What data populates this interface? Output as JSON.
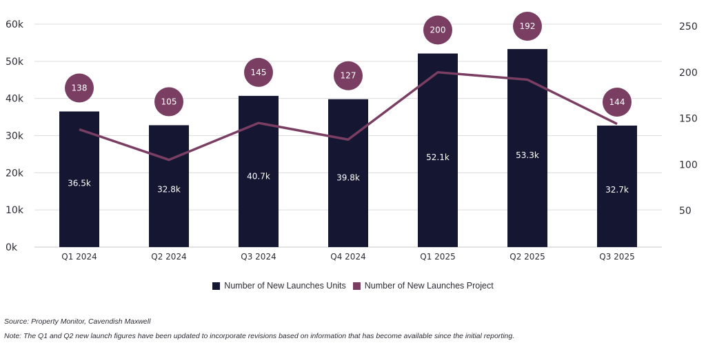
{
  "chart_data": {
    "type": "bar+line",
    "title": "",
    "categories": [
      "Q1 2024",
      "Q2 2024",
      "Q3 2024",
      "Q4 2024",
      "Q1 2025",
      "Q2 2025",
      "Q3 2025"
    ],
    "series": [
      {
        "name": "Number of New Launches Units",
        "type": "bar",
        "axis": "left",
        "color": "#151632",
        "values": [
          36500,
          32800,
          40700,
          39800,
          52100,
          53300,
          32700
        ],
        "labels": [
          "36.5k",
          "32.8k",
          "40.7k",
          "39.8k",
          "52.1k",
          "53.3k",
          "32.7k"
        ]
      },
      {
        "name": "Number of New Launches Project",
        "type": "line",
        "axis": "right",
        "color": "#7a3e63",
        "values": [
          138,
          105,
          145,
          127,
          200,
          192,
          144
        ],
        "labels": [
          "138",
          "105",
          "145",
          "127",
          "200",
          "192",
          "144"
        ]
      }
    ],
    "y_left": {
      "ylim": [
        0,
        60000
      ],
      "ticks": [
        0,
        10000,
        20000,
        30000,
        40000,
        50000,
        60000
      ],
      "tick_labels": [
        "0k",
        "10k",
        "20k",
        "30k",
        "40k",
        "50k",
        "60k"
      ]
    },
    "y_right": {
      "ylim": [
        0,
        250
      ],
      "ticks": [
        50,
        100,
        150,
        200,
        250
      ],
      "tick_labels": [
        "50",
        "100",
        "150",
        "200",
        "250"
      ]
    },
    "grid": true,
    "legend_position": "bottom-center"
  },
  "legend": {
    "units_label": "Number of New Launches Units",
    "project_label": "Number of New Launches Project"
  },
  "colors": {
    "bar": "#151632",
    "line": "#7a3e63",
    "grid": "#d9d9d9",
    "text": "#2b2b33"
  },
  "footnotes": {
    "source": "Source: Property Monitor, Cavendish Maxwell",
    "note": "Note: The Q1 and Q2 new launch figures have been updated to incorporate revisions based on information that has become available since the initial reporting."
  }
}
